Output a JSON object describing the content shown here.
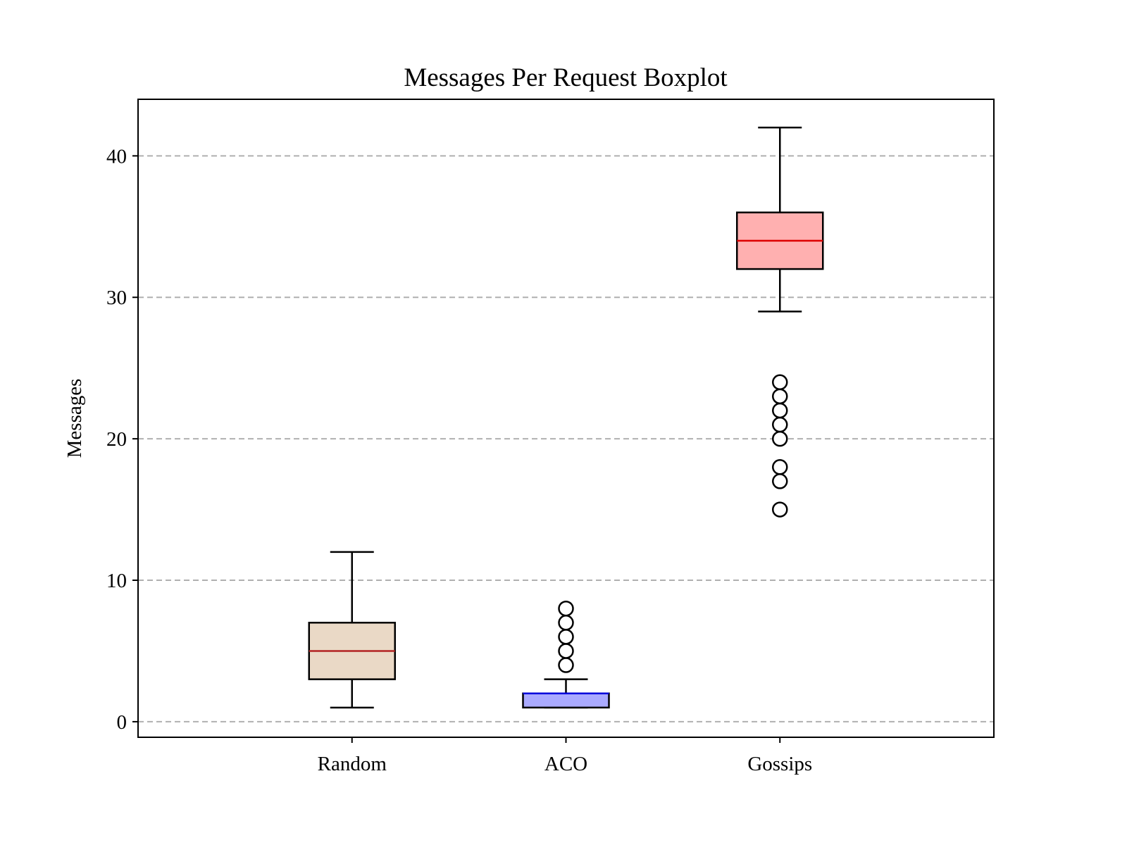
{
  "chart_data": {
    "type": "boxplot",
    "title": "Messages Per Request Boxplot",
    "xlabel": "",
    "ylabel": "Messages",
    "ylim": [
      -1.1,
      44
    ],
    "yticks": [
      0,
      10,
      20,
      30,
      40
    ],
    "grid": "y-dashed",
    "categories": [
      "Random",
      "ACO",
      "Gossips"
    ],
    "boxes": [
      {
        "category": "Random",
        "whisker_low": 1,
        "q1": 3,
        "median": 5,
        "q3": 7,
        "whisker_high": 12,
        "outliers": [],
        "fill": "#ead9c6",
        "median_color": "#b22222"
      },
      {
        "category": "ACO",
        "whisker_low": 1,
        "q1": 1,
        "median": 2,
        "q3": 2,
        "whisker_high": 3,
        "outliers": [
          4,
          5,
          6,
          7,
          8
        ],
        "fill": "#aaaaff",
        "median_color": "#0000dd"
      },
      {
        "category": "Gossips",
        "whisker_low": 29,
        "q1": 32,
        "median": 34,
        "q3": 36,
        "whisker_high": 42,
        "outliers": [
          15,
          17,
          18,
          20,
          21,
          22,
          23,
          24
        ],
        "fill": "#ffb0b0",
        "median_color": "#dd0000"
      }
    ]
  }
}
